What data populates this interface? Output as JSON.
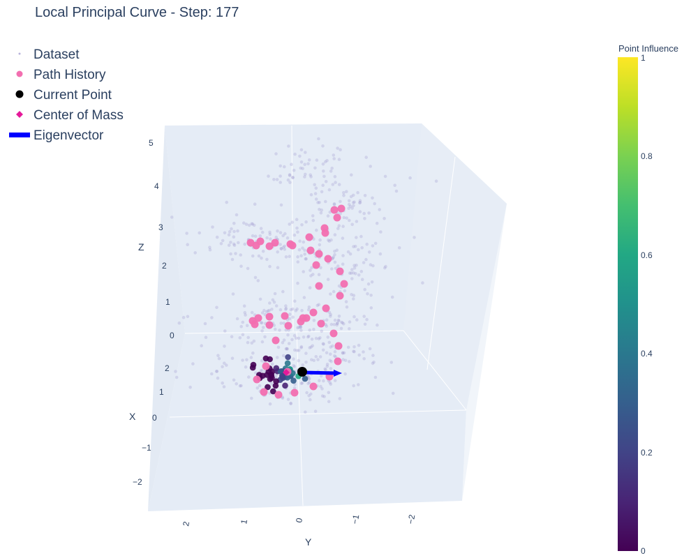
{
  "chart_data": {
    "type": "scatter",
    "title": "Local Principal Curve - Step: 177",
    "axes": {
      "x": {
        "label": "X",
        "ticks": [
          "2",
          "1",
          "0",
          "−1",
          "−2"
        ]
      },
      "y": {
        "label": "Y",
        "ticks": [
          "2",
          "1",
          "0",
          "−1",
          "−2"
        ]
      },
      "z": {
        "label": "Z",
        "ticks": [
          "0",
          "1",
          "2",
          "3",
          "4",
          "5"
        ]
      }
    },
    "legend": {
      "placement": "top-left",
      "items": [
        {
          "name": "Dataset",
          "symbol": "small-dot",
          "color": "#b6b3d9"
        },
        {
          "name": "Path History",
          "symbol": "circle",
          "color": "#f075b3"
        },
        {
          "name": "Current Point",
          "symbol": "circle",
          "color": "#000000"
        },
        {
          "name": "Center of Mass",
          "symbol": "diamond",
          "color": "#e5199a"
        },
        {
          "name": "Eigenvector",
          "symbol": "line",
          "color": "#0000ff"
        }
      ]
    },
    "colorbar": {
      "title": "Point Influence",
      "range": [
        0,
        1
      ],
      "ticks": [
        "0",
        "0.2",
        "0.4",
        "0.6",
        "0.8",
        "1"
      ],
      "colorscale": "viridis"
    },
    "colors": {
      "scene_background": "#e5ecf6",
      "dataset": "#9a93cc",
      "path_history": "#f26fb0",
      "current_point": "#000000",
      "center_of_mass": "#e5199a",
      "eigenvector": "#0000ff"
    }
  }
}
